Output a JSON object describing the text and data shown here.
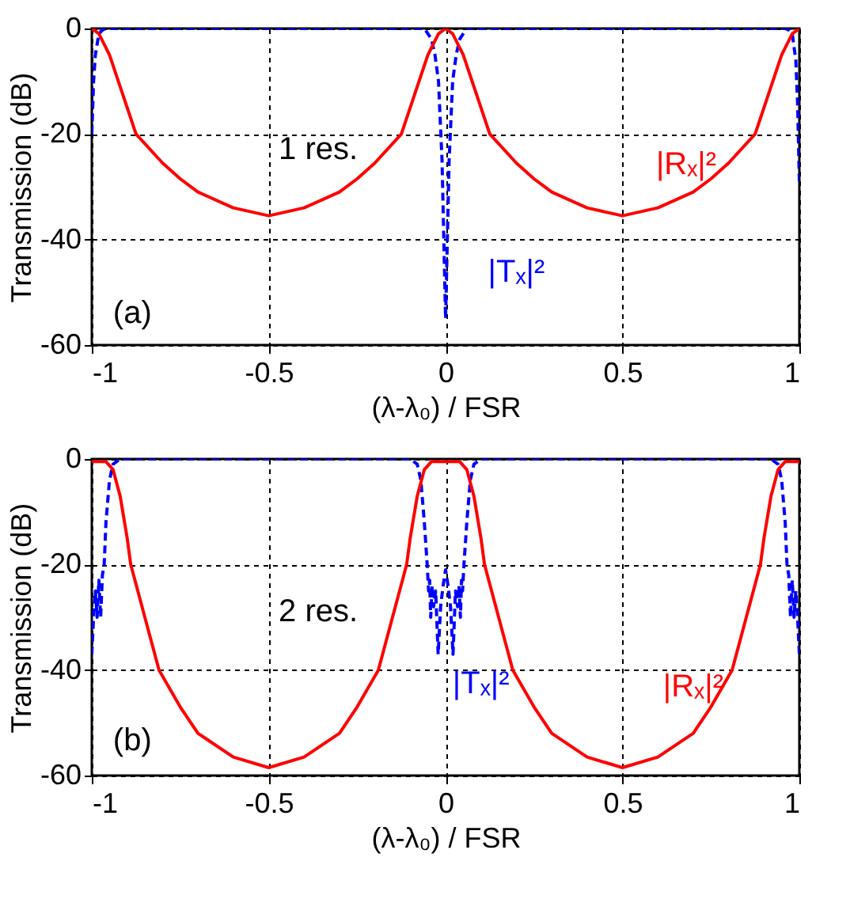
{
  "chart_data": [
    {
      "type": "line",
      "xlabel": "(λ-λ₀) / FSR",
      "ylabel": "Transmission (dB)",
      "xlim": [
        -1,
        1
      ],
      "ylim": [
        -60,
        0
      ],
      "xticks": [
        -1,
        -0.5,
        0,
        0.5,
        1
      ],
      "yticks": [
        -60,
        -40,
        -20,
        0
      ],
      "grid": true,
      "annotations": [
        "1 res.",
        "(a)"
      ],
      "series": [
        {
          "name": "|Tₓ|²",
          "color": "#0000ff",
          "line_style": "dashed",
          "x": [
            -1,
            -0.995,
            -0.99,
            -0.98,
            -0.97,
            -0.96,
            -0.06,
            -0.04,
            -0.03,
            -0.02,
            -0.01,
            -0.005,
            0,
            0.005,
            0.01,
            0.02,
            0.03,
            0.04,
            0.06,
            0.96,
            0.97,
            0.98,
            0.99,
            0.995,
            1
          ],
          "values": [
            -20,
            -10,
            -5,
            -1,
            -0.3,
            0,
            0,
            -2,
            -5,
            -10,
            -25,
            -40,
            -55,
            -40,
            -25,
            -10,
            -5,
            -2,
            0,
            0,
            -0.3,
            -1,
            -6,
            -14,
            -29
          ]
        },
        {
          "name": "|Rₓ|²",
          "color": "#ff0000",
          "line_style": "solid",
          "x": [
            -1,
            -0.98,
            -0.95,
            -0.92,
            -0.875,
            -0.8,
            -0.75,
            -0.7,
            -0.6,
            -0.5,
            -0.4,
            -0.3,
            -0.25,
            -0.2,
            -0.125,
            -0.08,
            -0.05,
            -0.02,
            0,
            0.02,
            0.05,
            0.08,
            0.125,
            0.2,
            0.25,
            0.3,
            0.4,
            0.5,
            0.6,
            0.7,
            0.75,
            0.8,
            0.875,
            0.92,
            0.95,
            0.98,
            1
          ],
          "values": [
            0,
            -1,
            -5,
            -11,
            -20,
            -25.5,
            -28.5,
            -31,
            -34,
            -35.5,
            -34,
            -31,
            -28.5,
            -25.5,
            -20,
            -11,
            -5,
            -1,
            0,
            -1,
            -5,
            -11,
            -20,
            -25.5,
            -28.5,
            -31,
            -34,
            -35.5,
            -34,
            -31,
            -28.5,
            -25.5,
            -20,
            -11,
            -5,
            -1,
            0
          ]
        }
      ]
    },
    {
      "type": "line",
      "xlabel": "(λ-λ₀) / FSR",
      "ylabel": "Transmission (dB)",
      "xlim": [
        -1,
        1
      ],
      "ylim": [
        -60,
        0
      ],
      "xticks": [
        -1,
        -0.5,
        0,
        0.5,
        1
      ],
      "yticks": [
        -60,
        -40,
        -20,
        0
      ],
      "grid": true,
      "annotations": [
        "2 res.",
        "(b)"
      ],
      "series": [
        {
          "name": "|Tₓ|²",
          "color": "#0000ff",
          "line_style": "dashed",
          "x": [
            -1,
            -0.995,
            -0.99,
            -0.985,
            -0.98,
            -0.975,
            -0.97,
            -0.965,
            -0.96,
            -0.95,
            -0.94,
            -0.92,
            -0.1,
            -0.08,
            -0.07,
            -0.06,
            -0.052,
            -0.048,
            -0.045,
            -0.042,
            -0.038,
            -0.034,
            -0.028,
            -0.021,
            -0.014,
            -0.007,
            0,
            0.007,
            0.014,
            0.021,
            0.028,
            0.034,
            0.038,
            0.042,
            0.045,
            0.048,
            0.052,
            0.06,
            0.07,
            0.08,
            0.1,
            0.92,
            0.94,
            0.95,
            0.96,
            0.965,
            0.97,
            0.975,
            0.98,
            0.985,
            0.99,
            0.995,
            1
          ],
          "values": [
            -37,
            -30,
            -25,
            -30,
            -23,
            -30,
            -22,
            -20,
            -12,
            -4,
            -1,
            0,
            0,
            -1,
            -4,
            -12,
            -20,
            -25,
            -23,
            -30,
            -24,
            -28,
            -25,
            -37,
            -28,
            -24,
            -21,
            -24,
            -28,
            -37,
            -25,
            -28,
            -24,
            -30,
            -23,
            -25,
            -20,
            -12,
            -4,
            -1,
            0,
            0,
            -1,
            -4,
            -12,
            -20,
            -22,
            -30,
            -23,
            -30,
            -25,
            -30,
            -37
          ]
        },
        {
          "name": "|Rₓ|²",
          "color": "#ff0000",
          "line_style": "solid",
          "x": [
            -1,
            -0.96,
            -0.94,
            -0.92,
            -0.9,
            -0.89,
            -0.85,
            -0.81,
            -0.75,
            -0.7,
            -0.6,
            -0.5,
            -0.4,
            -0.3,
            -0.25,
            -0.19,
            -0.15,
            -0.11,
            -0.1,
            -0.08,
            -0.06,
            -0.04,
            0,
            0.04,
            0.06,
            0.08,
            0.1,
            0.11,
            0.15,
            0.19,
            0.25,
            0.3,
            0.4,
            0.5,
            0.6,
            0.7,
            0.75,
            0.81,
            0.85,
            0.89,
            0.9,
            0.92,
            0.94,
            0.96,
            1
          ],
          "values": [
            -0.5,
            -0.5,
            -2,
            -7,
            -15,
            -20,
            -30,
            -40,
            -47,
            -52,
            -56.5,
            -58.5,
            -56.5,
            -52,
            -47,
            -40,
            -30,
            -20,
            -15,
            -7,
            -2,
            -0.5,
            -0.5,
            -0.5,
            -2,
            -7,
            -15,
            -20,
            -30,
            -40,
            -47,
            -52,
            -56.5,
            -58.5,
            -56.5,
            -52,
            -47,
            -40,
            -30,
            -20,
            -15,
            -7,
            -2,
            -0.5,
            -0.5
          ]
        }
      ]
    }
  ]
}
